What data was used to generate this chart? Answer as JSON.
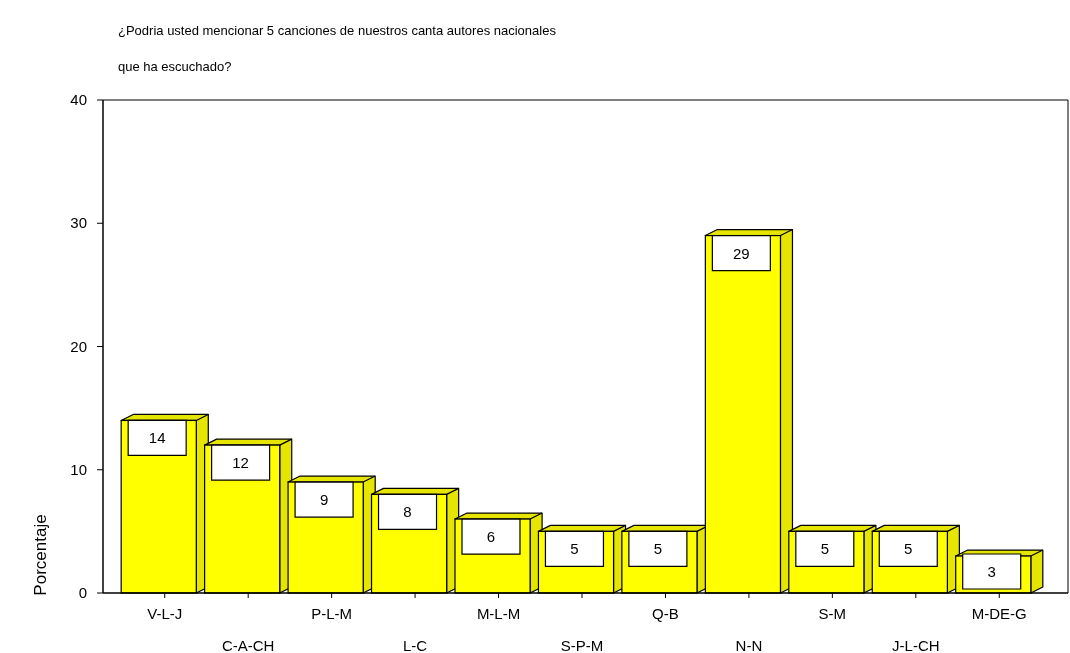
{
  "chart_data": {
    "type": "bar",
    "title": "¿Podria usted mencionar 5 canciones de nuestros canta autores nacionales\nque ha escuchado?",
    "ylabel": "Porcentaje",
    "categories": [
      "V-L-J",
      "C-A-CH",
      "P-L-M",
      "L-C",
      "M-L-M",
      "S-P-M",
      "Q-B",
      "N-N",
      "S-M",
      "J-L-CH",
      "M-DE-G"
    ],
    "values": [
      14,
      12,
      9,
      8,
      6,
      5,
      5,
      29,
      5,
      5,
      3
    ],
    "color": "#ffff00",
    "ylim": [
      0,
      40
    ],
    "yticks": [
      0,
      10,
      20,
      30,
      40
    ],
    "data_labels": true,
    "grid": false
  }
}
